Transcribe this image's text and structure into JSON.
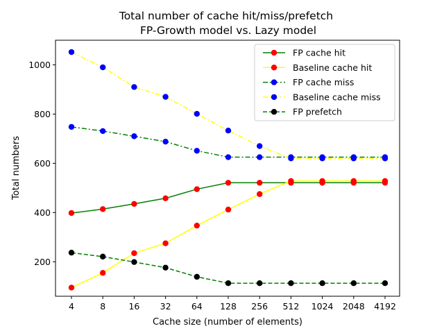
{
  "chart_data": {
    "type": "line",
    "title": "Total number of cache hit/miss/prefetch",
    "subtitle": "FP-Growth model vs. Lazy model",
    "xlabel": "Cache size (number of elements)",
    "ylabel": "Total numbers",
    "categories": [
      "4",
      "8",
      "16",
      "32",
      "64",
      "128",
      "256",
      "512",
      "1024",
      "2048",
      "4192"
    ],
    "ylim": [
      60,
      1100
    ],
    "yticks": [
      200,
      400,
      600,
      800,
      1000
    ],
    "grid": false,
    "legend_position": "top-right",
    "series": [
      {
        "name": "FP cache hit",
        "line_color": "#008000",
        "marker_color": "#ff0000",
        "line_style": "solid",
        "values": [
          398,
          414,
          435,
          458,
          495,
          521,
          521,
          521,
          521,
          521,
          521
        ]
      },
      {
        "name": "Baseline cache hit",
        "line_color": "#ffff00",
        "marker_color": "#ff0000",
        "line_style": "solid",
        "values": [
          95,
          155,
          235,
          275,
          347,
          412,
          475,
          528,
          528,
          528,
          528
        ]
      },
      {
        "name": "FP cache miss",
        "line_color": "#008000",
        "marker_color": "#0000ff",
        "line_style": "dashdot",
        "values": [
          748,
          731,
          710,
          688,
          651,
          625,
          625,
          625,
          625,
          625,
          625
        ]
      },
      {
        "name": "Baseline cache miss",
        "line_color": "#ffff00",
        "marker_color": "#0000ff",
        "line_style": "dashdot",
        "values": [
          1052,
          990,
          910,
          870,
          801,
          733,
          670,
          620,
          620,
          620,
          620
        ]
      },
      {
        "name": "FP prefetch",
        "line_color": "#008000",
        "marker_color": "#000000",
        "line_style": "dashed",
        "values": [
          237,
          221,
          199,
          176,
          139,
          113,
          113,
          113,
          113,
          113,
          113
        ]
      }
    ]
  }
}
